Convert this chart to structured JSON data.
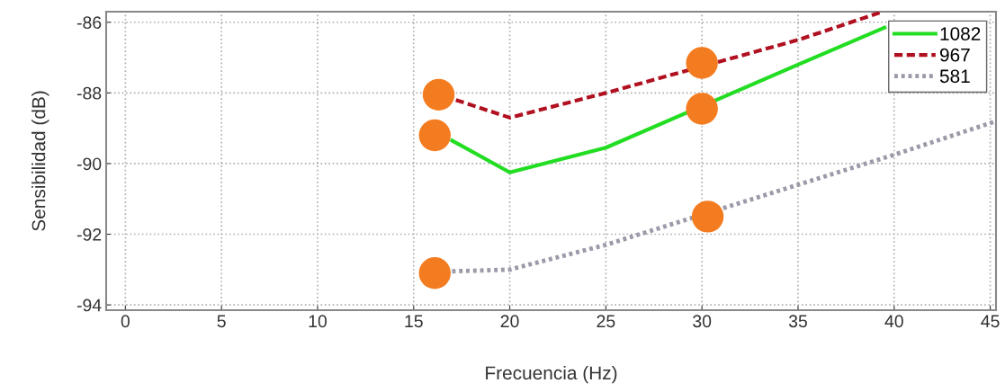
{
  "chart_data": {
    "type": "line",
    "xlabel": "Frecuencia (Hz)",
    "ylabel": "Sensibilidad (dB)",
    "xlim": [
      -1,
      45.3
    ],
    "ylim": [
      -94.15,
      -85.7
    ],
    "xticks": [
      0,
      5,
      10,
      15,
      20,
      25,
      30,
      35,
      40,
      45
    ],
    "yticks": [
      -94,
      -92,
      -90,
      -88,
      -86
    ],
    "grid": true,
    "legend": "top right",
    "series": [
      {
        "name": "1082",
        "color": "#22dd22",
        "line_style": "solid",
        "x": [
          17,
          20,
          25,
          35,
          39.5
        ],
        "values": [
          -89.35,
          -90.25,
          -89.55,
          -87.2,
          -86.15
        ]
      },
      {
        "name": "967",
        "color": "#b01020",
        "line_style": "dashed",
        "x": [
          17.2,
          20,
          25,
          35,
          39.4
        ],
        "values": [
          -88.2,
          -88.7,
          -88.0,
          -86.5,
          -85.7
        ]
      },
      {
        "name": "581",
        "color": "#9a9aa8",
        "line_style": "dotted",
        "x": [
          17,
          20,
          25,
          40,
          45.3
        ],
        "values": [
          -93.05,
          -93.0,
          -92.3,
          -89.75,
          -88.8
        ]
      },
      {
        "type": "scatter",
        "color": "#f47c20",
        "marker": "circle",
        "x": [
          16.3,
          16.1,
          16.1,
          30.0,
          30.0,
          30.3
        ],
        "values": [
          -88.05,
          -89.2,
          -93.1,
          -87.15,
          -88.45,
          -91.5
        ]
      }
    ]
  }
}
